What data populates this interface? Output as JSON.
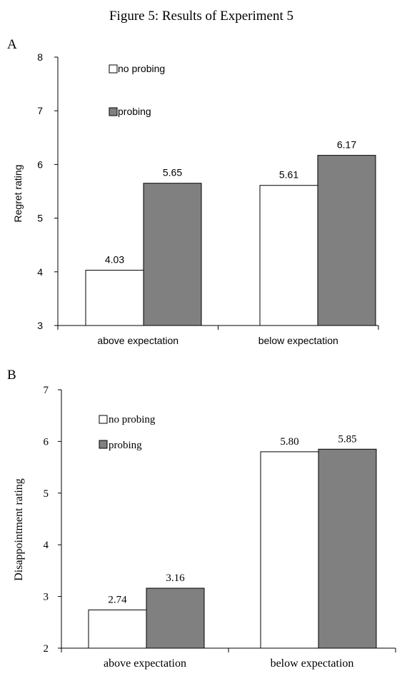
{
  "figure_title": "Figure 5: Results of Experiment 5",
  "colors": {
    "no_probing": "#ffffff",
    "probing": "#808080",
    "axis": "#000000"
  },
  "chart_data": [
    {
      "panel_label": "A",
      "type": "bar",
      "categories": [
        "above expectation",
        "below expectation"
      ],
      "series": [
        {
          "name": "no probing",
          "values": [
            4.03,
            5.61
          ],
          "labels": [
            "4.03",
            "5.61"
          ]
        },
        {
          "name": "probing",
          "values": [
            5.65,
            6.17
          ],
          "labels": [
            "5.65",
            "6.17"
          ]
        }
      ],
      "ylabel": "Regret rating",
      "ylim": [
        3,
        8
      ],
      "yticks": [
        "3",
        "4",
        "5",
        "6",
        "7",
        "8"
      ],
      "legend_position": "top-left",
      "grid": false
    },
    {
      "panel_label": "B",
      "type": "bar",
      "categories": [
        "above expectation",
        "below expectation"
      ],
      "series": [
        {
          "name": "no probing",
          "values": [
            2.74,
            5.8
          ],
          "labels": [
            "2.74",
            "5.80"
          ]
        },
        {
          "name": "probing",
          "values": [
            3.16,
            5.85
          ],
          "labels": [
            "3.16",
            "5.85"
          ]
        }
      ],
      "ylabel": "Disappointment rating",
      "ylim": [
        2,
        7
      ],
      "yticks": [
        "2",
        "3",
        "4",
        "5",
        "6",
        "7"
      ],
      "legend_position": "top-left",
      "grid": false
    }
  ]
}
